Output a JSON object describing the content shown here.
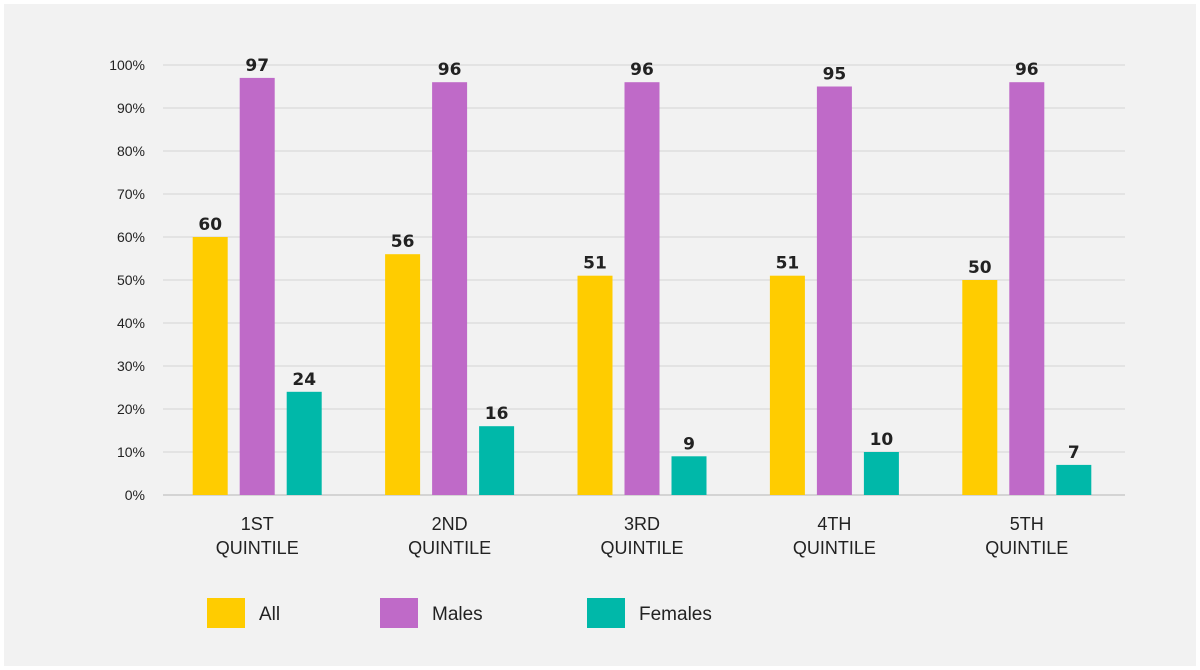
{
  "chart_data": {
    "type": "bar",
    "categories": [
      [
        "1ST",
        "QUINTILE"
      ],
      [
        "2ND",
        "QUINTILE"
      ],
      [
        "3RD",
        "QUINTILE"
      ],
      [
        "4TH",
        "QUINTILE"
      ],
      [
        "5TH",
        "QUINTILE"
      ]
    ],
    "series": [
      {
        "name": "All",
        "color": "#ffcc00",
        "values": [
          60,
          56,
          51,
          51,
          50
        ]
      },
      {
        "name": "Males",
        "color": "#bf6ac8",
        "values": [
          97,
          96,
          96,
          95,
          96
        ]
      },
      {
        "name": "Females",
        "color": "#00b8a9",
        "values": [
          24,
          16,
          9,
          10,
          7
        ]
      }
    ],
    "yticks": [
      "0%",
      "10%",
      "20%",
      "30%",
      "40%",
      "50%",
      "60%",
      "70%",
      "80%",
      "90%",
      "100%"
    ],
    "ylim": [
      0,
      100
    ],
    "grid": true,
    "legend_position": "bottom-left"
  }
}
